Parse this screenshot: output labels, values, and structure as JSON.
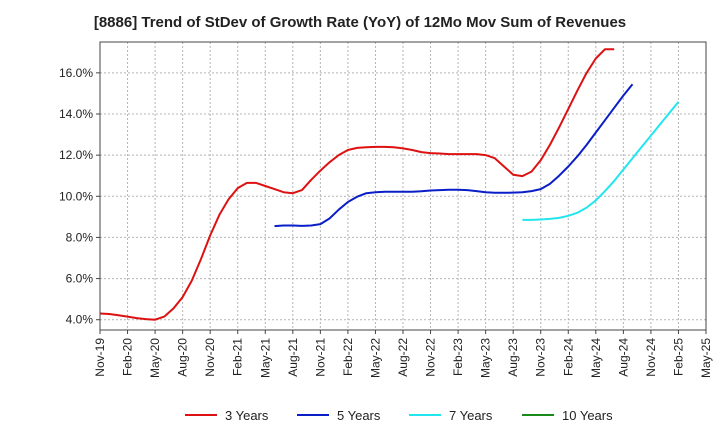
{
  "chart_data": {
    "type": "line",
    "title": "[8886]  Trend of StDev of Growth Rate (YoY) of 12Mo Mov Sum of Revenues",
    "xlabel": "",
    "ylabel": "",
    "ylim": [
      3.5,
      17.5
    ],
    "yticks": [
      4.0,
      6.0,
      8.0,
      10.0,
      12.0,
      14.0,
      16.0
    ],
    "ytick_labels": [
      "4.0%",
      "6.0%",
      "8.0%",
      "10.0%",
      "12.0%",
      "14.0%",
      "16.0%"
    ],
    "x_start": "Nov-19",
    "x_months": 66,
    "xtick_labels": [
      "Nov-19",
      "Feb-20",
      "May-20",
      "Aug-20",
      "Nov-20",
      "Feb-21",
      "May-21",
      "Aug-21",
      "Nov-21",
      "Feb-22",
      "May-22",
      "Aug-22",
      "Nov-22",
      "Feb-23",
      "May-23",
      "Aug-23",
      "Nov-23",
      "Feb-24",
      "May-24",
      "Aug-24",
      "Nov-24",
      "Feb-25",
      "May-25"
    ],
    "grid": true,
    "legend_position": "bottom",
    "series": [
      {
        "name": "3 Years",
        "color": "#dd1111",
        "start": 0,
        "values": [
          4.3,
          4.28,
          4.22,
          4.15,
          4.08,
          4.03,
          4.0,
          4.15,
          4.55,
          5.1,
          5.9,
          6.95,
          8.1,
          9.1,
          9.85,
          10.4,
          10.65,
          10.65,
          10.5,
          10.35,
          10.2,
          10.15,
          10.3,
          10.8,
          11.25,
          11.65,
          12.0,
          12.25,
          12.35,
          12.38,
          12.4,
          12.4,
          12.38,
          12.33,
          12.25,
          12.15,
          12.1,
          12.08,
          12.05,
          12.05,
          12.05,
          12.05,
          12.0,
          11.85,
          11.45,
          11.05,
          10.98,
          11.2,
          11.75,
          12.5,
          13.35,
          14.25,
          15.15,
          16.0,
          16.7,
          17.15,
          17.15
        ]
      },
      {
        "name": "5 Years",
        "color": "#0a1ec8",
        "start": 19,
        "values": [
          8.55,
          8.58,
          8.58,
          8.56,
          8.58,
          8.65,
          8.92,
          9.35,
          9.72,
          9.98,
          10.15,
          10.2,
          10.22,
          10.22,
          10.22,
          10.22,
          10.24,
          10.28,
          10.3,
          10.32,
          10.32,
          10.3,
          10.25,
          10.2,
          10.17,
          10.17,
          10.18,
          10.2,
          10.25,
          10.35,
          10.6,
          11.0,
          11.45,
          11.95,
          12.5,
          13.1,
          13.7,
          14.3,
          14.9,
          15.45
        ]
      },
      {
        "name": "7 Years",
        "color": "#22e6ee",
        "start": 46,
        "values": [
          8.85,
          8.85,
          8.87,
          8.9,
          8.95,
          9.05,
          9.2,
          9.45,
          9.8,
          10.25,
          10.75,
          11.3,
          11.85,
          12.4,
          12.95,
          13.5,
          14.05,
          14.6
        ]
      },
      {
        "name": "10 Years",
        "color": "#1a8a1a",
        "start": 0,
        "values": []
      }
    ]
  }
}
